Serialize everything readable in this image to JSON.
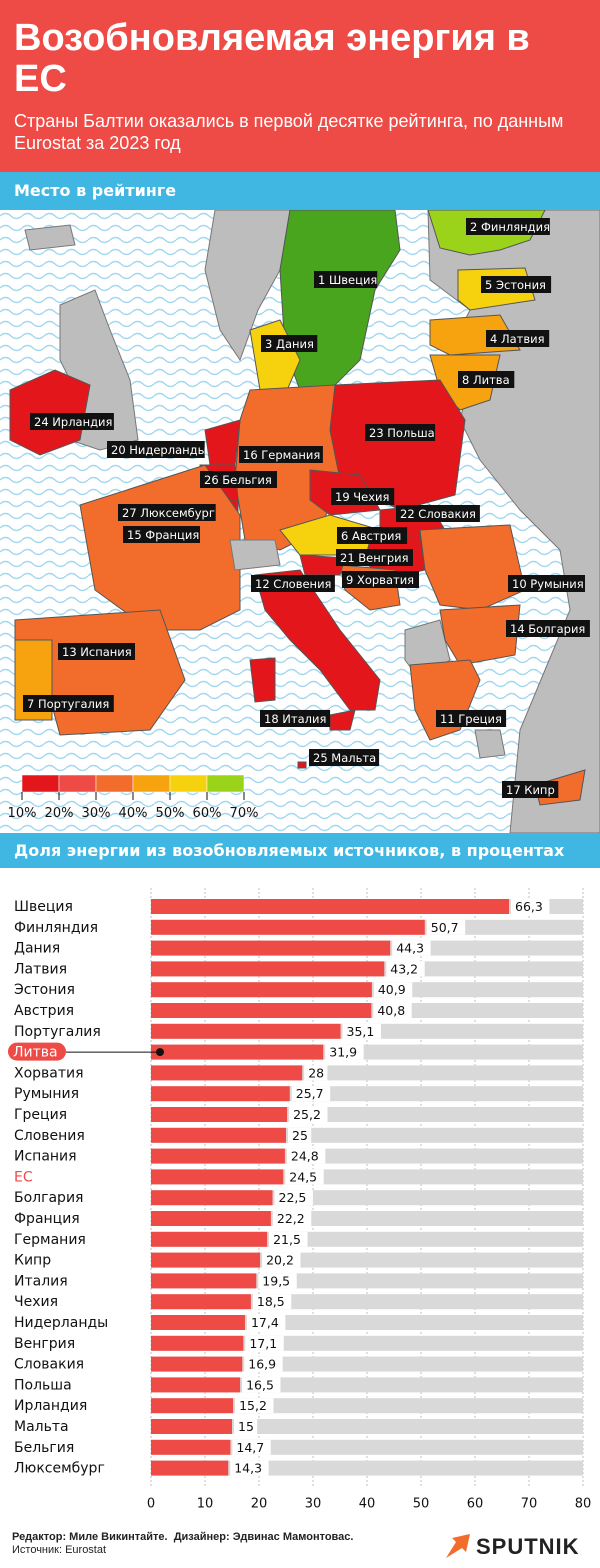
{
  "header": {
    "title": "Возобновляемая энергия в ЕС",
    "subtitle": "Страны Балтии оказались в первой десятке рейтинга, по данным Eurostat за 2023 год"
  },
  "map": {
    "section_title": "Место в рейтинге",
    "labels": [
      {
        "rank": "1",
        "name": "Швеция"
      },
      {
        "rank": "2",
        "name": "Финляндия"
      },
      {
        "rank": "3",
        "name": "Дания"
      },
      {
        "rank": "4",
        "name": "Латвия"
      },
      {
        "rank": "5",
        "name": "Эстония"
      },
      {
        "rank": "6",
        "name": "Австрия"
      },
      {
        "rank": "7",
        "name": "Португалия"
      },
      {
        "rank": "8",
        "name": "Литва"
      },
      {
        "rank": "9",
        "name": "Хорватия"
      },
      {
        "rank": "10",
        "name": "Румыния"
      },
      {
        "rank": "11",
        "name": "Греция"
      },
      {
        "rank": "12",
        "name": "Словения"
      },
      {
        "rank": "13",
        "name": "Испания"
      },
      {
        "rank": "14",
        "name": "Болгария"
      },
      {
        "rank": "15",
        "name": "Франция"
      },
      {
        "rank": "16",
        "name": "Германия"
      },
      {
        "rank": "17",
        "name": "Кипр"
      },
      {
        "rank": "18",
        "name": "Италия"
      },
      {
        "rank": "19",
        "name": "Чехия"
      },
      {
        "rank": "20",
        "name": "Нидерланды"
      },
      {
        "rank": "21",
        "name": "Венгрия"
      },
      {
        "rank": "22",
        "name": "Словакия"
      },
      {
        "rank": "23",
        "name": "Польша"
      },
      {
        "rank": "24",
        "name": "Ирландия"
      },
      {
        "rank": "25",
        "name": "Мальта"
      },
      {
        "rank": "26",
        "name": "Бельгия"
      },
      {
        "rank": "27",
        "name": "Люксембург"
      }
    ],
    "legend": {
      "ticks": [
        "10%",
        "20%",
        "30%",
        "40%",
        "50%",
        "60%",
        "70%"
      ],
      "colors": [
        "#e3161b",
        "#ee4b46",
        "#f26d2b",
        "#f7a20f",
        "#f5d20d",
        "#9bd31b",
        "#49a51d"
      ]
    }
  },
  "chart_data": {
    "type": "bar",
    "title": "Доля энергии из возобновляемых источников, в процентах",
    "categories": [
      "Швеция",
      "Финляндия",
      "Дания",
      "Латвия",
      "Эстония",
      "Австрия",
      "Португалия",
      "Литва",
      "Хорватия",
      "Румыния",
      "Греция",
      "Словения",
      "Испания",
      "ЕС",
      "Болгария",
      "Франция",
      "Германия",
      "Кипр",
      "Италия",
      "Чехия",
      "Нидерланды",
      "Венгрия",
      "Словакия",
      "Польша",
      "Ирландия",
      "Мальта",
      "Бельгия",
      "Люксембург"
    ],
    "values": [
      66.3,
      50.7,
      44.3,
      43.2,
      40.9,
      40.8,
      35.1,
      31.9,
      28,
      25.7,
      25.2,
      25,
      24.8,
      24.5,
      22.5,
      22.2,
      21.5,
      20.2,
      19.5,
      18.5,
      17.4,
      17.1,
      16.9,
      16.5,
      15.2,
      15,
      14.7,
      14.3
    ],
    "value_labels": [
      "66,3",
      "50,7",
      "44,3",
      "43,2",
      "40,9",
      "40,8",
      "35,1",
      "31,9",
      "28",
      "25,7",
      "25,2",
      "25",
      "24,8",
      "24,5",
      "22,5",
      "22,2",
      "21,5",
      "20,2",
      "19,5",
      "18,5",
      "17,4",
      "17,1",
      "16,9",
      "16,5",
      "15,2",
      "15",
      "14,7",
      "14,3"
    ],
    "highlight": "Литва",
    "emphasized": "ЕС",
    "xlim": [
      0,
      80
    ],
    "xticks": [
      "0",
      "10",
      "20",
      "30",
      "40",
      "50",
      "60",
      "70",
      "80"
    ],
    "grid": true,
    "colors": {
      "bar": "#ee4b46",
      "track": "#d9d9d9",
      "highlight_label_bg": "#ee4b46",
      "emphasized_text": "#ee4b46"
    }
  },
  "footer": {
    "line1_parts": [
      "Редактор: Миле Викинтайте.",
      "Дизайнер: Эдвинас Мамонтовас."
    ],
    "line2": "Источник: Eurostat"
  },
  "logo": {
    "text": "SPUTNIK",
    "icon": "sputnik-arrow-icon",
    "color": "#f26d2b"
  }
}
